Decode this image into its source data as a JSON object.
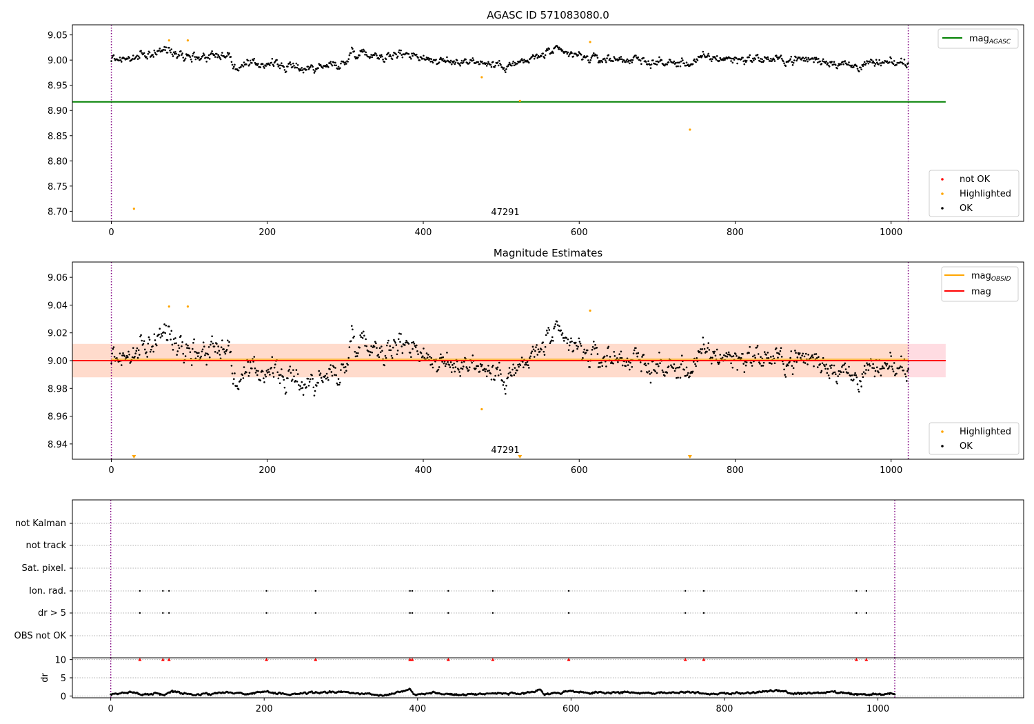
{
  "chart_data": [
    {
      "type": "scatter",
      "title": "AGASC ID 571083080.0",
      "xlabel": "",
      "ylabel": "",
      "xlim": [
        -50,
        1170
      ],
      "ylim": [
        8.68,
        9.07
      ],
      "x_ticks": [
        "0",
        "200",
        "400",
        "600",
        "800",
        "1000"
      ],
      "y_ticks": [
        "8.70",
        "8.75",
        "8.80",
        "8.85",
        "8.90",
        "8.95",
        "9.00",
        "9.05"
      ],
      "x_tick_values": [
        0,
        200,
        400,
        600,
        800,
        1000
      ],
      "y_tick_values": [
        8.7,
        8.75,
        8.8,
        8.85,
        8.9,
        8.95,
        9.0,
        9.05
      ],
      "vlines": [
        0,
        1022
      ],
      "annotation": "47291",
      "annotation_x": 510,
      "hline": {
        "name": "mag_AGASC",
        "value": 8.917,
        "x_range": [
          -50,
          1070
        ],
        "color": "#008000"
      },
      "legend_lines": [
        {
          "label": "mag",
          "sub": "AGASC",
          "color": "#008000"
        }
      ],
      "legend_points": [
        {
          "label": "not OK",
          "color": "#ff0000"
        },
        {
          "label": "Highlighted",
          "color": "#ffa500"
        },
        {
          "label": "OK",
          "color": "#000000"
        }
      ],
      "highlighted_points": [
        [
          29,
          8.705
        ],
        [
          74,
          9.039
        ],
        [
          98,
          9.039
        ],
        [
          475,
          8.966
        ],
        [
          524,
          8.919
        ],
        [
          614,
          9.036
        ],
        [
          742,
          8.862
        ]
      ],
      "ok_series": {
        "x_range": [
          0,
          1022
        ],
        "count": 1022,
        "profile": [
          [
            0,
            9.003
          ],
          [
            30,
            9.003
          ],
          [
            50,
            9.012
          ],
          [
            70,
            9.02
          ],
          [
            90,
            9.014
          ],
          [
            110,
            9.006
          ],
          [
            140,
            9.012
          ],
          [
            152,
            9.01
          ],
          [
            156,
            8.985
          ],
          [
            180,
            8.99
          ],
          [
            200,
            8.995
          ],
          [
            230,
            8.985
          ],
          [
            260,
            8.985
          ],
          [
            290,
            8.992
          ],
          [
            300,
            8.992
          ],
          [
            308,
            9.018
          ],
          [
            340,
            9.01
          ],
          [
            360,
            9.008
          ],
          [
            380,
            9.015
          ],
          [
            400,
            9.005
          ],
          [
            430,
            8.995
          ],
          [
            460,
            9.0
          ],
          [
            490,
            8.99
          ],
          [
            520,
            8.992
          ],
          [
            545,
            9.005
          ],
          [
            565,
            9.018
          ],
          [
            585,
            9.012
          ],
          [
            620,
            9.002
          ],
          [
            660,
            9.002
          ],
          [
            700,
            8.995
          ],
          [
            740,
            8.993
          ],
          [
            760,
            9.005
          ],
          [
            800,
            9.002
          ],
          [
            830,
            9.003
          ],
          [
            860,
            9.0
          ],
          [
            900,
            9.002
          ],
          [
            930,
            8.995
          ],
          [
            950,
            8.988
          ],
          [
            980,
            8.993
          ],
          [
            1000,
            8.993
          ],
          [
            1022,
            8.995
          ]
        ],
        "noise": 0.0085
      }
    },
    {
      "type": "scatter",
      "title": "Magnitude Estimates",
      "xlabel": "",
      "ylabel": "",
      "xlim": [
        -50,
        1170
      ],
      "ylim": [
        8.929,
        9.071
      ],
      "x_ticks": [
        "0",
        "200",
        "400",
        "600",
        "800",
        "1000"
      ],
      "y_ticks": [
        "8.94",
        "8.96",
        "8.98",
        "9.00",
        "9.02",
        "9.04",
        "9.06"
      ],
      "x_tick_values": [
        0,
        200,
        400,
        600,
        800,
        1000
      ],
      "y_tick_values": [
        8.94,
        8.96,
        8.98,
        9.0,
        9.02,
        9.04,
        9.06
      ],
      "vlines": [
        0,
        1022
      ],
      "annotation": "47291",
      "annotation_x": 510,
      "mag_line": {
        "value": 9.0,
        "color": "#ff0000"
      },
      "mag_obsid_line": {
        "value": 9.001,
        "color": "#ffa500"
      },
      "bands": [
        {
          "y": [
            8.988,
            9.012
          ],
          "x_range": [
            -50,
            1070
          ],
          "color": "#ffc0cb"
        },
        {
          "y": [
            8.988,
            9.012
          ],
          "x_range": [
            -50,
            1022
          ],
          "color": "#ffdab9"
        }
      ],
      "legend_lines": [
        {
          "label": "mag",
          "sub": "OBSID",
          "color": "#ffa500"
        },
        {
          "label": "mag",
          "sub": "",
          "color": "#ff0000"
        }
      ],
      "legend_points": [
        {
          "label": "Highlighted",
          "color": "#ffa500"
        },
        {
          "label": "OK",
          "color": "#000000"
        }
      ],
      "highlighted_points": [
        [
          74,
          9.039
        ],
        [
          98,
          9.039
        ],
        [
          475,
          8.965
        ],
        [
          614,
          9.036
        ]
      ],
      "offscale_markers": [
        29,
        524,
        742
      ],
      "ok_series": {
        "x_range": [
          0,
          1022
        ],
        "count": 1022,
        "profile": [
          [
            0,
            9.003
          ],
          [
            30,
            9.003
          ],
          [
            50,
            9.012
          ],
          [
            70,
            9.02
          ],
          [
            90,
            9.014
          ],
          [
            110,
            9.006
          ],
          [
            140,
            9.012
          ],
          [
            152,
            9.01
          ],
          [
            156,
            8.985
          ],
          [
            180,
            8.99
          ],
          [
            200,
            8.995
          ],
          [
            230,
            8.985
          ],
          [
            260,
            8.985
          ],
          [
            290,
            8.992
          ],
          [
            300,
            8.992
          ],
          [
            308,
            9.018
          ],
          [
            340,
            9.01
          ],
          [
            360,
            9.008
          ],
          [
            380,
            9.015
          ],
          [
            400,
            9.005
          ],
          [
            430,
            8.995
          ],
          [
            460,
            9.0
          ],
          [
            490,
            8.99
          ],
          [
            520,
            8.992
          ],
          [
            545,
            9.005
          ],
          [
            565,
            9.018
          ],
          [
            585,
            9.012
          ],
          [
            620,
            9.002
          ],
          [
            660,
            9.002
          ],
          [
            700,
            8.995
          ],
          [
            740,
            8.993
          ],
          [
            760,
            9.005
          ],
          [
            800,
            9.002
          ],
          [
            830,
            9.003
          ],
          [
            860,
            9.0
          ],
          [
            900,
            9.002
          ],
          [
            930,
            8.995
          ],
          [
            950,
            8.988
          ],
          [
            980,
            8.993
          ],
          [
            1000,
            8.993
          ],
          [
            1022,
            8.995
          ]
        ],
        "noise": 0.0085
      }
    },
    {
      "type": "scatter",
      "title": "",
      "xlabel": "",
      "ylabel": "",
      "xlim": [
        -50,
        1190
      ],
      "vlines": [
        0,
        1022
      ],
      "flag_rows": [
        "not Kalman",
        "not track",
        "Sat. pixel.",
        "Ion. rad.",
        "dr > 5",
        "OBS not OK"
      ],
      "flag_marks": [
        {
          "row": "Ion. rad.",
          "x": [
            38,
            68,
            76,
            203,
            267,
            390,
            393,
            440,
            498,
            597,
            749,
            773,
            972,
            985
          ]
        },
        {
          "row": "dr > 5",
          "x": [
            38,
            68,
            76,
            203,
            267,
            390,
            393,
            440,
            498,
            597,
            749,
            773,
            972,
            985
          ]
        }
      ]
    },
    {
      "type": "scatter",
      "title": "",
      "xlabel": "",
      "ylabel": "dr",
      "xlim": [
        -50,
        1190
      ],
      "ylim": [
        -0.5,
        10.5
      ],
      "x_ticks": [
        "0",
        "200",
        "400",
        "600",
        "800",
        "1000"
      ],
      "y_ticks": [
        "0",
        "5",
        "10"
      ],
      "x_tick_values": [
        0,
        200,
        400,
        600,
        800,
        1000
      ],
      "y_tick_values": [
        0,
        5,
        10
      ],
      "vlines": [
        0,
        1022
      ],
      "clipped_markers": {
        "y": 10,
        "x": [
          38,
          68,
          76,
          203,
          267,
          390,
          393,
          440,
          498,
          597,
          749,
          773,
          972,
          985
        ],
        "color": "#ff0000"
      },
      "dr_series": {
        "x_range": [
          0,
          1022
        ],
        "count": 1022,
        "profile": [
          [
            0,
            0.3
          ],
          [
            30,
            1.2
          ],
          [
            40,
            0.4
          ],
          [
            60,
            0.7
          ],
          [
            70,
            0.3
          ],
          [
            80,
            1.3
          ],
          [
            100,
            0.6
          ],
          [
            110,
            0.3
          ],
          [
            150,
            1.0
          ],
          [
            180,
            0.6
          ],
          [
            200,
            1.2
          ],
          [
            230,
            0.4
          ],
          [
            260,
            0.9
          ],
          [
            300,
            1.1
          ],
          [
            330,
            0.6
          ],
          [
            360,
            0.3
          ],
          [
            390,
            1.9
          ],
          [
            395,
            0.5
          ],
          [
            420,
            0.9
          ],
          [
            450,
            0.3
          ],
          [
            500,
            0.8
          ],
          [
            540,
            0.5
          ],
          [
            560,
            1.9
          ],
          [
            565,
            0.4
          ],
          [
            600,
            1.3
          ],
          [
            620,
            0.8
          ],
          [
            660,
            1.0
          ],
          [
            700,
            0.8
          ],
          [
            760,
            1.1
          ],
          [
            780,
            0.6
          ],
          [
            830,
            0.8
          ],
          [
            870,
            1.5
          ],
          [
            890,
            0.6
          ],
          [
            940,
            1.0
          ],
          [
            980,
            0.3
          ],
          [
            1022,
            0.6
          ]
        ],
        "noise": 0.25
      }
    }
  ]
}
